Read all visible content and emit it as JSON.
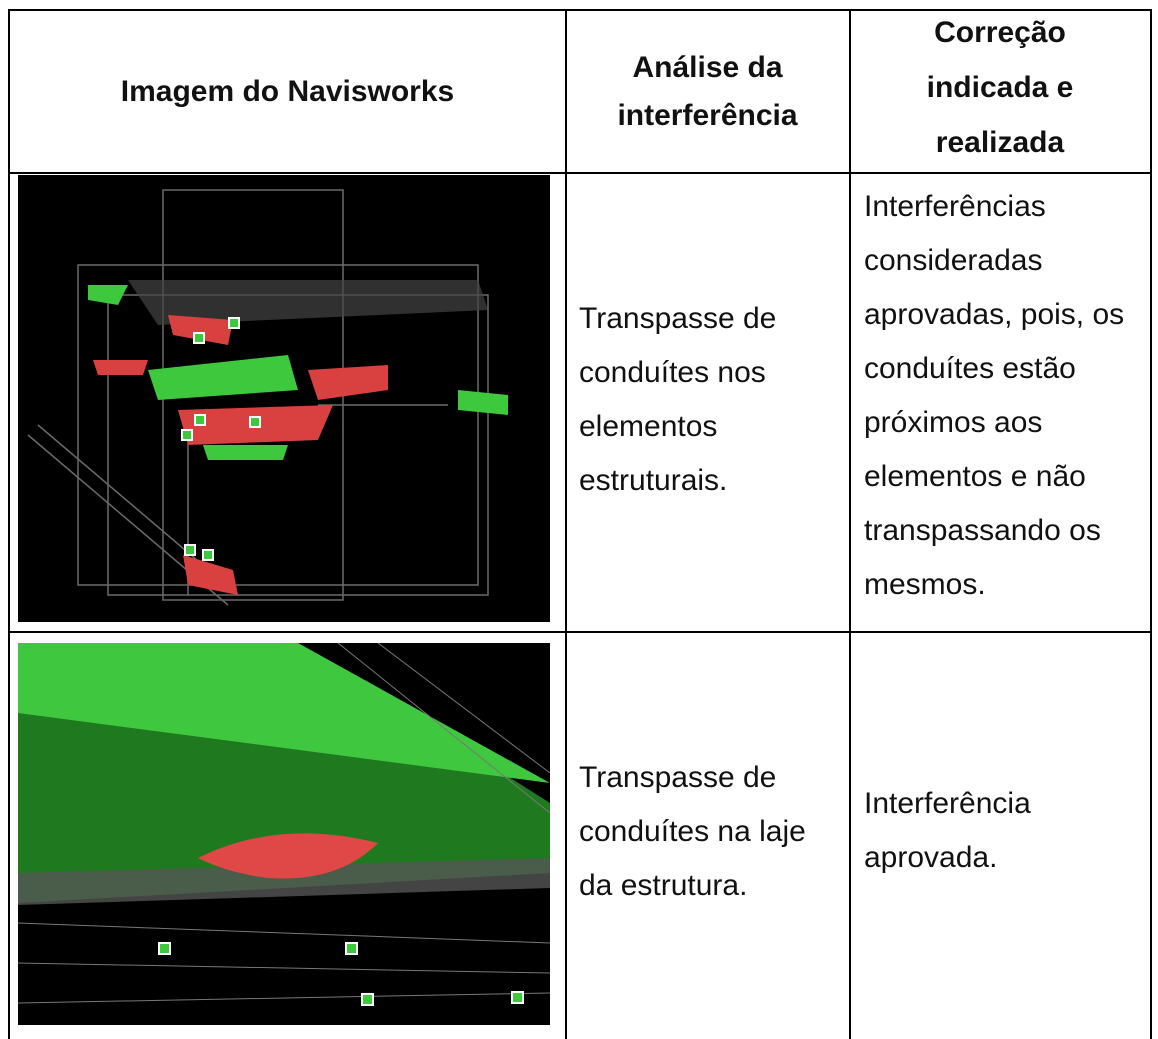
{
  "table": {
    "header": [
      "Imagem do Navisworks",
      "Análise da interferência",
      "Correção indicada e realizada"
    ],
    "rows": [
      [
        "Transpasse de conduítes nos elementos estruturais.",
        "Interferências consideradas aprovadas, pois, os conduítes estão próximos aos elementos e não transpassando os mesmos."
      ],
      [
        "Transpasse de conduítes na laje da estrutura.",
        "Interferência aprovada."
      ]
    ]
  }
}
